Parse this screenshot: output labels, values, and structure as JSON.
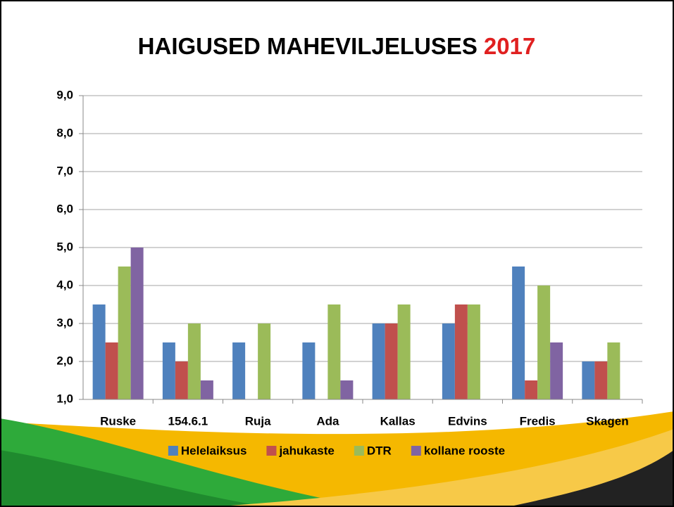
{
  "chart_data": {
    "type": "bar",
    "title": "HAIGUSED MAHEVILJELUSES",
    "title_highlight": "2017",
    "categories": [
      "Ruske",
      "154.6.1",
      "Ruja",
      "Ada",
      "Kallas",
      "Edvins",
      "Fredis",
      "Skagen"
    ],
    "series": [
      {
        "name": "Helelaiksus",
        "color": "#4f81bd",
        "values": [
          3.5,
          2.5,
          2.5,
          2.5,
          3,
          3,
          4.5,
          2
        ]
      },
      {
        "name": "jahukaste",
        "color": "#c0504d",
        "values": [
          2.5,
          2,
          null,
          null,
          3,
          3.5,
          1.5,
          2
        ]
      },
      {
        "name": "DTR",
        "color": "#9bbb59",
        "values": [
          4.5,
          3,
          3,
          3.5,
          3.5,
          3.5,
          4,
          2.5
        ]
      },
      {
        "name": "kollane rooste",
        "color": "#8064a2",
        "values": [
          5,
          1.5,
          null,
          1.5,
          null,
          null,
          2.5,
          null
        ]
      }
    ],
    "ylim": [
      1,
      9
    ],
    "yticks": [
      {
        "value": 1,
        "label": "1,0"
      },
      {
        "value": 2,
        "label": "2,0"
      },
      {
        "value": 3,
        "label": "3,0"
      },
      {
        "value": 4,
        "label": "4,0"
      },
      {
        "value": 5,
        "label": "5,0"
      },
      {
        "value": 6,
        "label": "6,0"
      },
      {
        "value": 7,
        "label": "7,0"
      },
      {
        "value": 8,
        "label": "8,0"
      },
      {
        "value": 9,
        "label": "9,0"
      }
    ],
    "grid": true,
    "legend": "bottom"
  }
}
